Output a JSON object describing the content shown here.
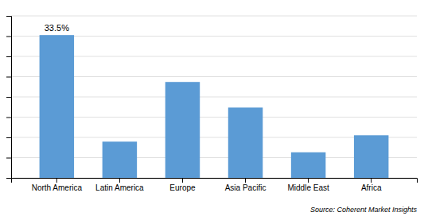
{
  "chart_data": {
    "type": "bar",
    "categories": [
      "North America",
      "Latin America",
      "Europe",
      "Asia Pacific",
      "Middle East",
      "Africa"
    ],
    "values": [
      33.5,
      8.5,
      22.5,
      16.5,
      6.0,
      10.0
    ],
    "color": "#5B9BD5",
    "ylim": [
      0,
      38
    ],
    "yticks": [
      0,
      4.75,
      9.5,
      14.25,
      19,
      23.75,
      28.5,
      33.25,
      38
    ],
    "grid": true,
    "tick_labels": "x",
    "annotations": [
      {
        "text": "33.5%",
        "x": "North America",
        "y": 33.5
      }
    ],
    "source": "Source: Coherent Market Insights"
  }
}
